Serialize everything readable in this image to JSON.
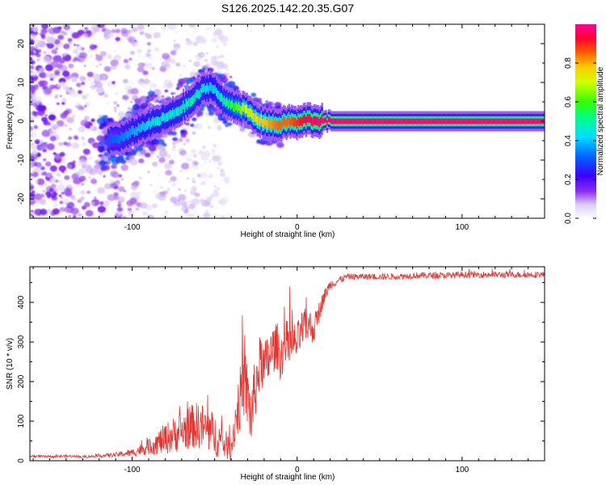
{
  "chart_data": [
    {
      "type": "heatmap",
      "title": "S126.2025.142.20.35.G07",
      "xlabel": "Height of straight line (km)",
      "ylabel": "Frequency (Hz)",
      "xlim": [
        -162,
        150
      ],
      "ylim": [
        -25,
        25
      ],
      "xticks": [
        -100,
        0,
        100
      ],
      "xtick_labels": [
        "-100",
        "0",
        "100"
      ],
      "yticks": [
        -20,
        -10,
        0,
        10,
        20
      ],
      "ytick_labels": [
        "-20",
        "-10",
        "0",
        "10",
        "20"
      ],
      "colorbar": {
        "label": "Normalized spectral amplitude",
        "range": [
          0,
          1
        ],
        "ticks": [
          0.0,
          0.2,
          0.4,
          0.6,
          0.8
        ],
        "tick_labels": [
          "0.0",
          "0.2",
          "0.4",
          "0.6",
          "0.8"
        ],
        "colormap": "rainbow (white-violet-blue-cyan-green-yellow-red-magenta)"
      },
      "ridge": {
        "description": "dominant frequency versus height",
        "x": [
          -115,
          -105,
          -95,
          -85,
          -75,
          -65,
          -58,
          -52,
          -45,
          -38,
          -32,
          -25,
          -18,
          -12,
          -5,
          0,
          5,
          15,
          25,
          50,
          80,
          100,
          150
        ],
        "y": [
          -5,
          -4,
          -1.5,
          0,
          2,
          5,
          8,
          9,
          5,
          4,
          3,
          0.5,
          -0.5,
          -1,
          0,
          -0.5,
          0.5,
          0,
          0,
          0,
          0,
          0,
          0
        ],
        "amplitude": [
          0.3,
          0.35,
          0.4,
          0.45,
          0.45,
          0.5,
          0.45,
          0.4,
          0.5,
          0.6,
          0.7,
          0.75,
          0.8,
          0.85,
          0.85,
          0.9,
          0.95,
          0.97,
          0.98,
          0.98,
          0.98,
          0.98,
          0.98
        ]
      },
      "grid": false
    },
    {
      "type": "line",
      "title": "",
      "xlabel": "Height of straight line (km)",
      "ylabel": "SNR (10 * v/v)",
      "xlim": [
        -162,
        150
      ],
      "ylim": [
        0,
        490
      ],
      "xticks": [
        -100,
        0,
        100
      ],
      "xtick_labels": [
        "-100",
        "0",
        "100"
      ],
      "yticks": [
        0,
        100,
        200,
        300,
        400
      ],
      "ytick_labels": [
        "0",
        "100",
        "200",
        "300",
        "400"
      ],
      "series": [
        {
          "color": "#e8332e",
          "x": [
            -162,
            -150,
            -140,
            -130,
            -120,
            -110,
            -100,
            -95,
            -90,
            -85,
            -80,
            -75,
            -70,
            -65,
            -60,
            -55,
            -50,
            -45,
            -40,
            -38,
            -35,
            -32,
            -30,
            -28,
            -25,
            -22,
            -20,
            -18,
            -15,
            -12,
            -10,
            -8,
            -5,
            -2,
            0,
            3,
            5,
            8,
            10,
            12,
            15,
            18,
            20,
            25,
            30,
            40,
            50,
            60,
            70,
            80,
            90,
            100,
            110,
            120,
            130,
            140,
            150
          ],
          "y": [
            12,
            10,
            12,
            10,
            12,
            15,
            20,
            28,
            35,
            45,
            55,
            65,
            75,
            85,
            90,
            80,
            65,
            45,
            30,
            90,
            150,
            200,
            160,
            110,
            190,
            260,
            230,
            250,
            280,
            290,
            260,
            290,
            300,
            295,
            300,
            330,
            340,
            340,
            330,
            360,
            400,
            430,
            445,
            455,
            465,
            465,
            465,
            465,
            468,
            468,
            468,
            470,
            470,
            470,
            470,
            470,
            470
          ],
          "noise": [
            3,
            3,
            3,
            3,
            4,
            6,
            10,
            15,
            20,
            30,
            40,
            45,
            50,
            55,
            60,
            60,
            55,
            40,
            30,
            60,
            80,
            90,
            90,
            85,
            80,
            70,
            70,
            70,
            60,
            60,
            60,
            60,
            60,
            55,
            50,
            50,
            45,
            40,
            35,
            30,
            20,
            15,
            12,
            10,
            8,
            8,
            8,
            8,
            8,
            8,
            8,
            8,
            8,
            8,
            8,
            8,
            8
          ]
        }
      ],
      "grid": false
    }
  ]
}
